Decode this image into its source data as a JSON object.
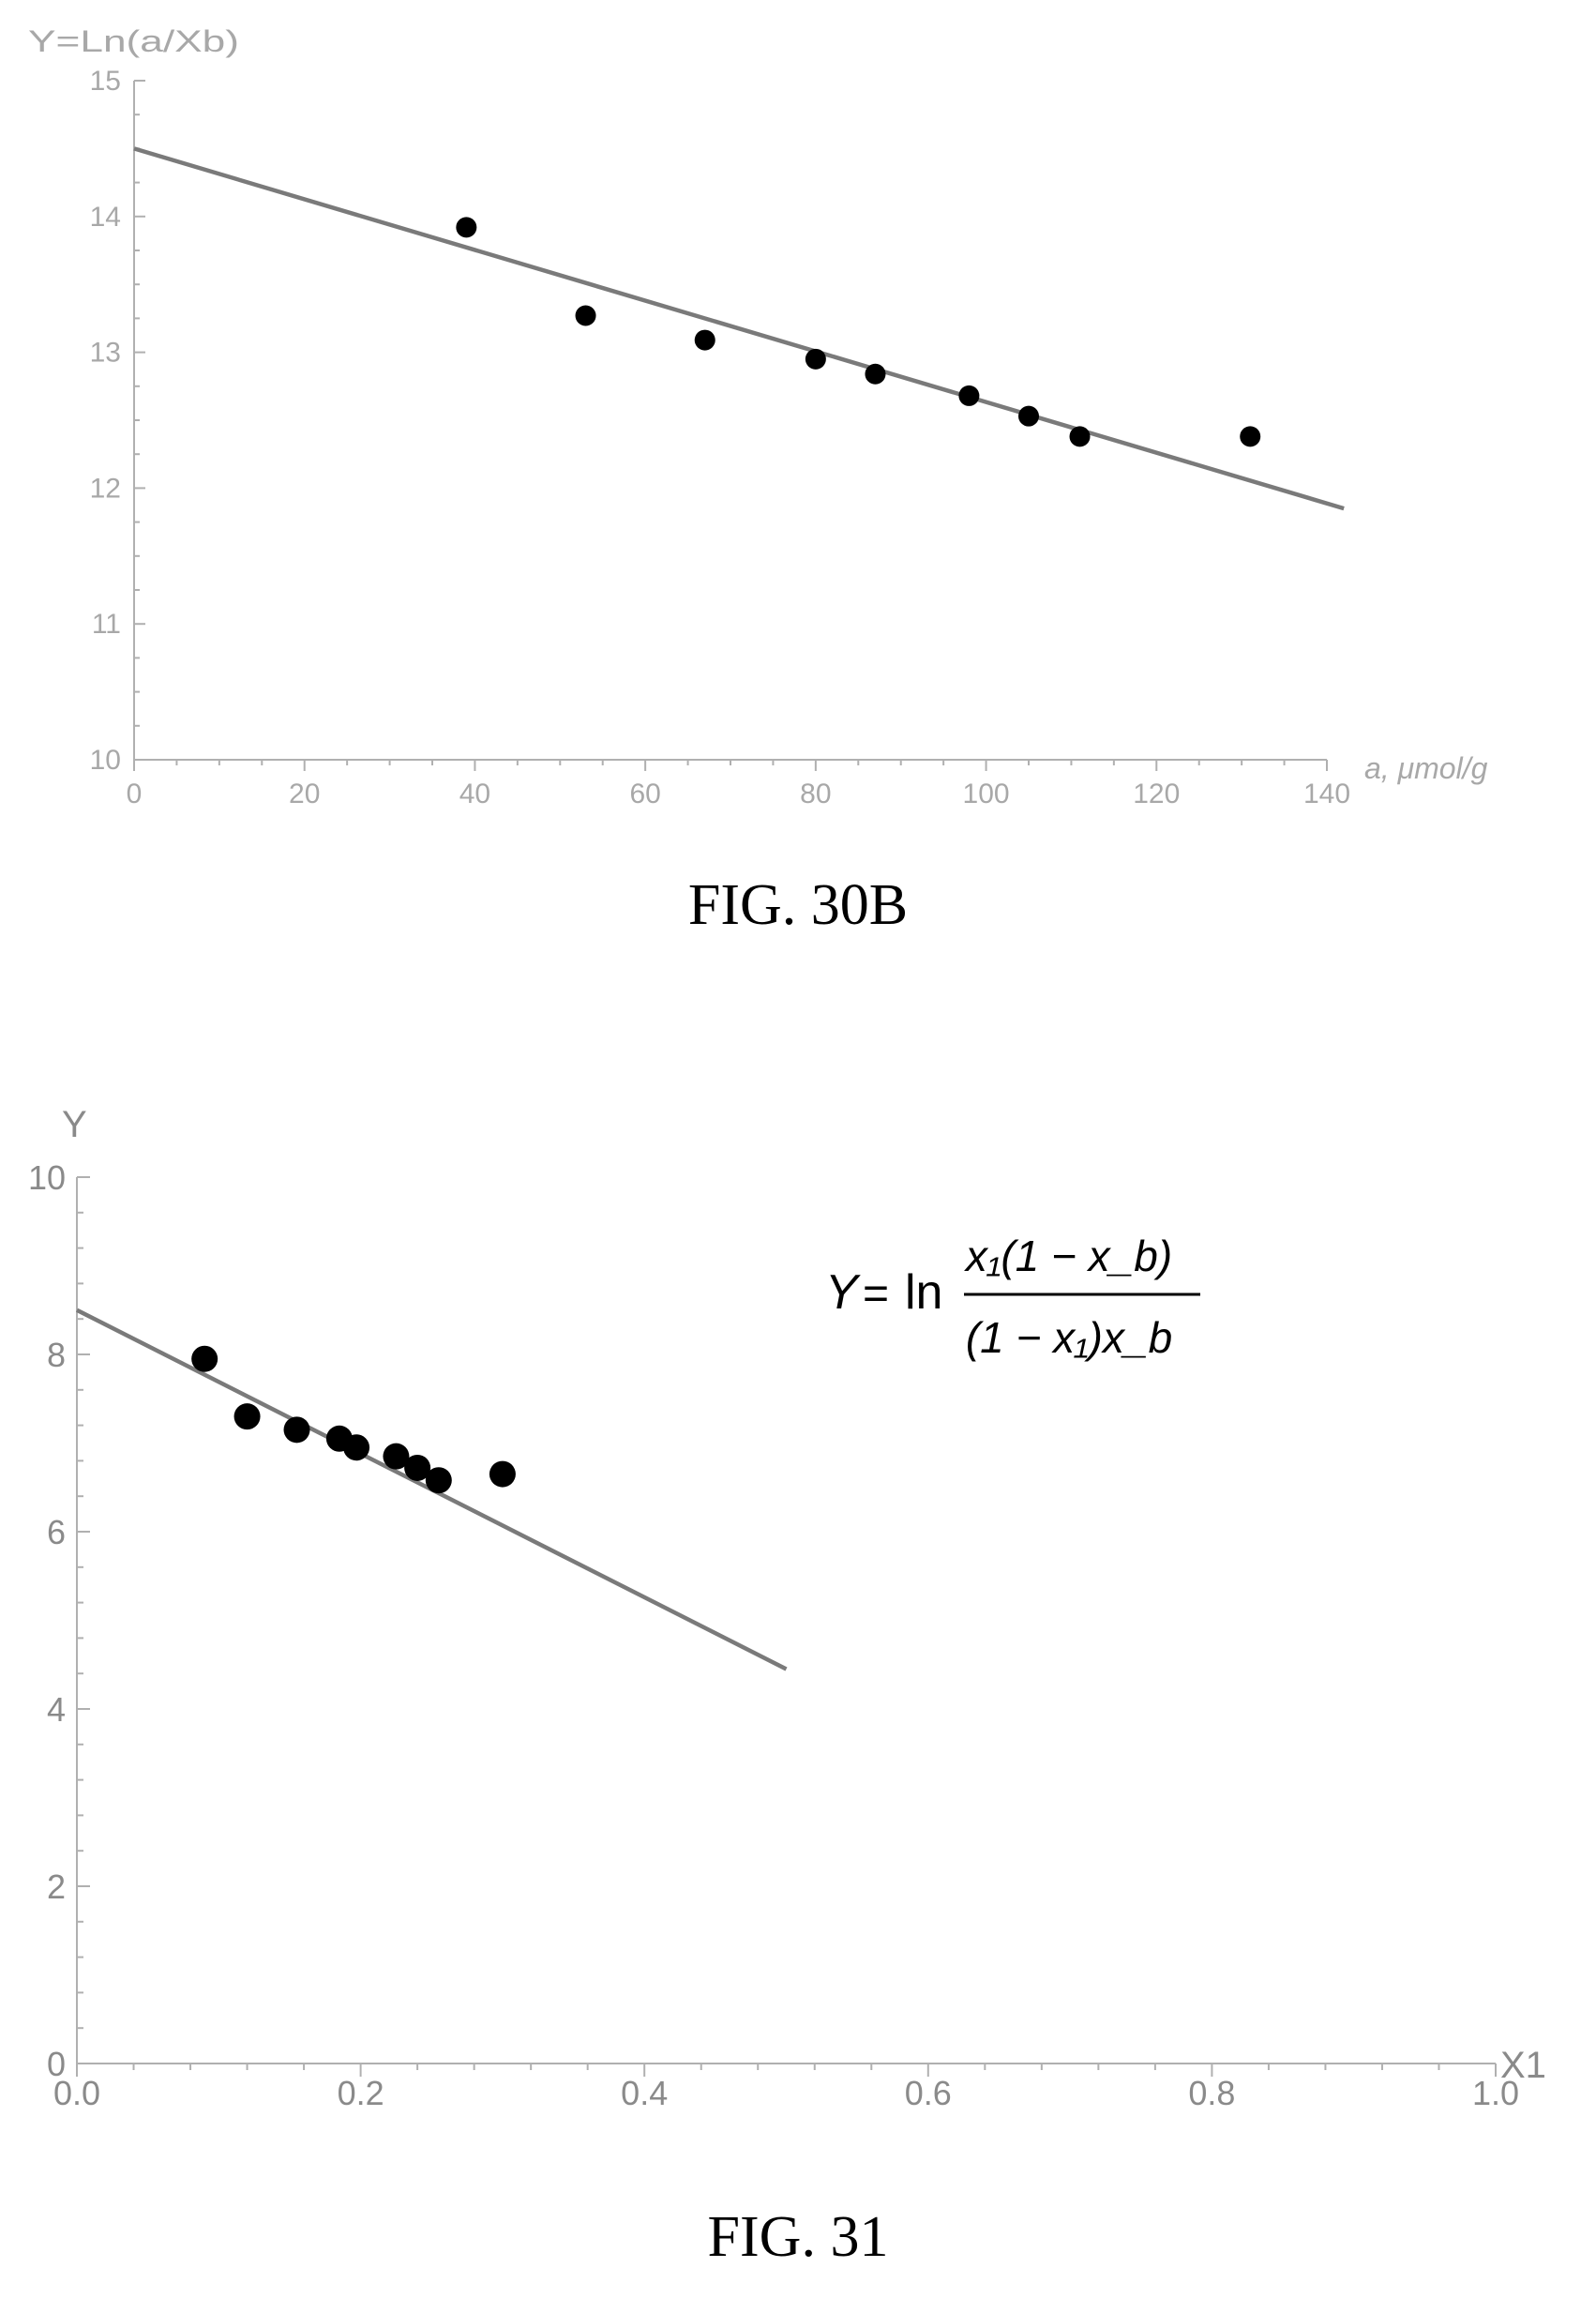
{
  "chart_data": [
    {
      "type": "scatter",
      "caption": "FIG. 30B",
      "xlabel": "a, μmol/g",
      "ylabel": "Y=Ln(a/Xb)",
      "xlim": [
        0,
        140
      ],
      "ylim": [
        10,
        15
      ],
      "xticks": [
        "0",
        "20",
        "40",
        "60",
        "80",
        "100",
        "120",
        "140"
      ],
      "yticks": [
        "10",
        "11",
        "12",
        "13",
        "14",
        "15"
      ],
      "points": [
        {
          "x": 39,
          "y": 13.92
        },
        {
          "x": 53,
          "y": 13.27
        },
        {
          "x": 67,
          "y": 13.09
        },
        {
          "x": 80,
          "y": 12.95
        },
        {
          "x": 87,
          "y": 12.84
        },
        {
          "x": 98,
          "y": 12.68
        },
        {
          "x": 105,
          "y": 12.53
        },
        {
          "x": 111,
          "y": 12.38
        },
        {
          "x": 131,
          "y": 12.38
        }
      ],
      "fit_line": [
        {
          "x": 0,
          "y": 14.5
        },
        {
          "x": 142,
          "y": 11.85
        }
      ],
      "grid": false,
      "colors": {
        "axis": "#b0b0b0",
        "line": "#7a7a7a",
        "points": "#000000"
      }
    },
    {
      "type": "scatter",
      "caption": "FIG. 31",
      "xlabel": "X1",
      "ylabel": "Y",
      "xlim": [
        0,
        1
      ],
      "ylim": [
        0,
        10
      ],
      "xticks": [
        "0.0",
        "0.2",
        "0.4",
        "0.6",
        "0.8",
        "1.0"
      ],
      "yticks": [
        "0",
        "2",
        "4",
        "6",
        "8",
        "10"
      ],
      "annotation": {
        "lhs": "Y",
        "eq": "=",
        "fn": "ln",
        "numerator": "x₁(1 − x_b)",
        "denominator": "(1 − x₁)x_b"
      },
      "points": [
        {
          "x": 0.09,
          "y": 7.95
        },
        {
          "x": 0.12,
          "y": 7.3
        },
        {
          "x": 0.155,
          "y": 7.15
        },
        {
          "x": 0.185,
          "y": 7.05
        },
        {
          "x": 0.197,
          "y": 6.95
        },
        {
          "x": 0.225,
          "y": 6.85
        },
        {
          "x": 0.24,
          "y": 6.72
        },
        {
          "x": 0.255,
          "y": 6.58
        },
        {
          "x": 0.3,
          "y": 6.65
        }
      ],
      "fit_line": [
        {
          "x": 0,
          "y": 8.5
        },
        {
          "x": 0.5,
          "y": 4.45
        }
      ],
      "grid": false,
      "colors": {
        "axis": "#b0b0b0",
        "line": "#7a7a7a",
        "points": "#000000"
      }
    }
  ]
}
